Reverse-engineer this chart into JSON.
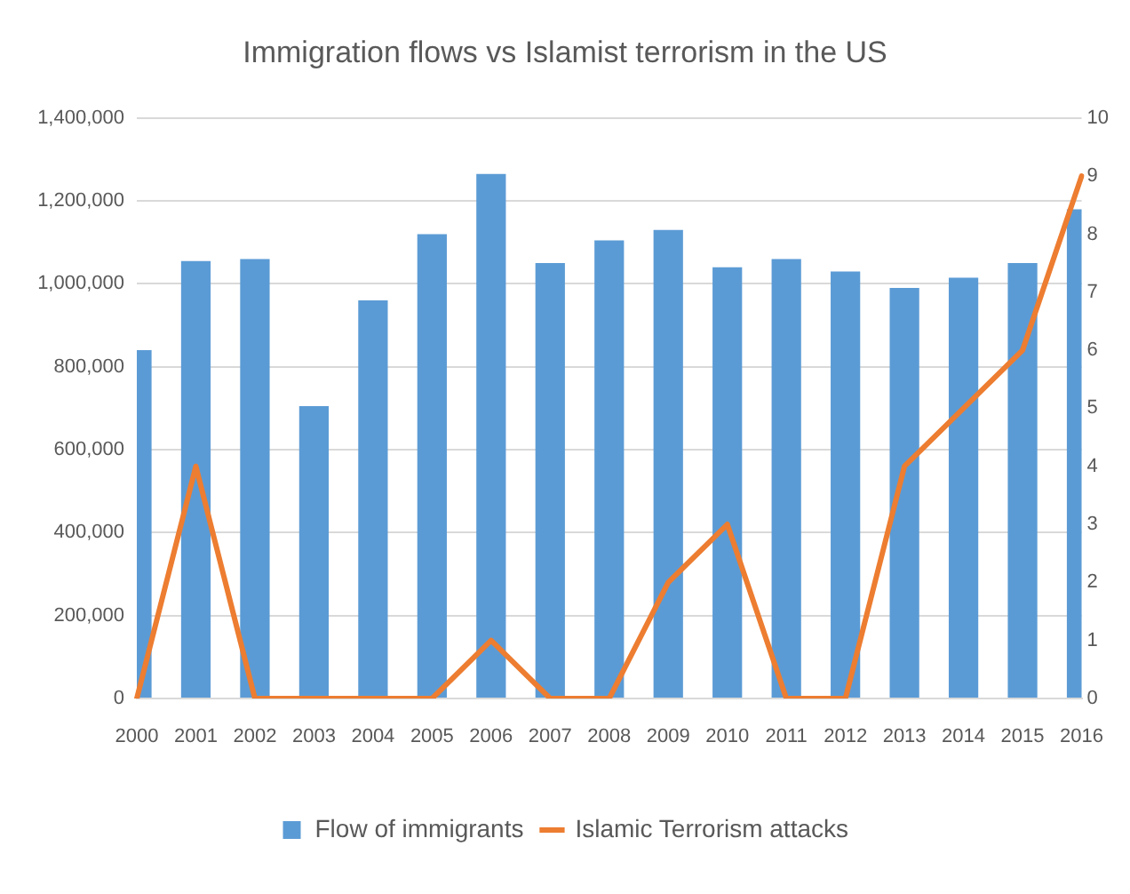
{
  "chart_data": {
    "type": "bar",
    "title": "Immigration flows vs Islamist terrorism in the US",
    "categories": [
      "2000",
      "2001",
      "2002",
      "2003",
      "2004",
      "2005",
      "2006",
      "2007",
      "2008",
      "2009",
      "2010",
      "2011",
      "2012",
      "2013",
      "2014",
      "2015",
      "2016"
    ],
    "series": [
      {
        "name": "Flow of immigrants",
        "color": "#5b9bd5",
        "values": [
          840000,
          1055000,
          1060000,
          705000,
          960000,
          1120000,
          1265000,
          1050000,
          1105000,
          1130000,
          1040000,
          1060000,
          1030000,
          990000,
          1015000,
          1050000,
          1180000
        ]
      },
      {
        "name": "Islamic Terrorism attacks",
        "type": "line",
        "axis": "y2",
        "color": "#ed7d31",
        "values": [
          0,
          4,
          0,
          0,
          0,
          0,
          1,
          0,
          0,
          2,
          3,
          0,
          0,
          4,
          5,
          6,
          9
        ]
      }
    ],
    "ylim": [
      0,
      1400000
    ],
    "yticks": [
      0,
      {
        "value": 200000,
        "label": "200,000"
      },
      {
        "value": 400000,
        "label": "400,000"
      },
      {
        "value": 600000,
        "label": "600,000"
      },
      {
        "value": 800000,
        "label": "800,000"
      },
      {
        "value": 1000000,
        "label": "1,000,000"
      },
      {
        "value": 1200000,
        "label": "1,200,000"
      },
      {
        "value": 1400000,
        "label": "1,400,000"
      }
    ],
    "y2lim": [
      0,
      10
    ],
    "y2ticks": [
      0,
      1,
      2,
      3,
      4,
      5,
      6,
      7,
      8,
      9,
      10
    ],
    "grid": "y",
    "legend": "bottom",
    "marker": "none",
    "line_style": "solid"
  }
}
